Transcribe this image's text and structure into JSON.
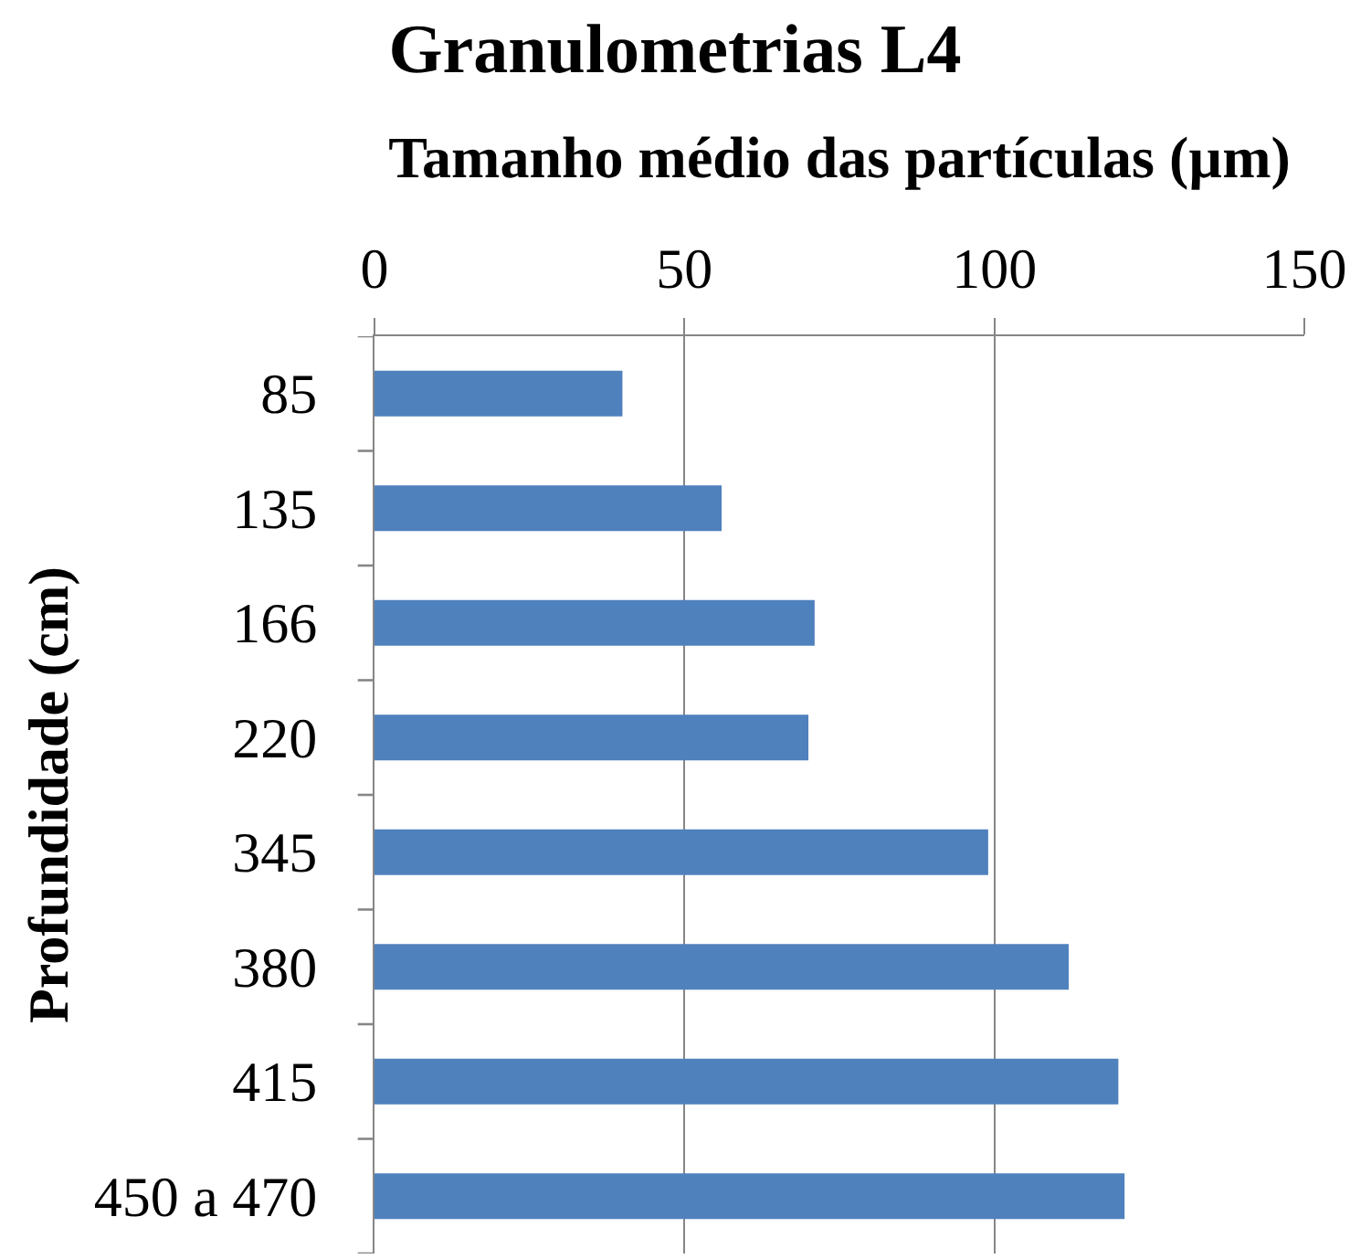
{
  "chart_data": {
    "type": "bar",
    "orientation": "horizontal",
    "title": "Granulometrias L4",
    "xlabel": "Tamanho médio das partículas (µm)",
    "ylabel": "Profundidade (cm)",
    "categories": [
      "85",
      "135",
      "166",
      "220",
      "345",
      "380",
      "415",
      "450 a 470"
    ],
    "values": [
      40,
      56,
      71,
      70,
      99,
      112,
      120,
      121
    ],
    "color": "#4f81bd",
    "xlim": [
      0,
      150
    ],
    "xticks": [
      0,
      50,
      100,
      150
    ],
    "grid": "x"
  }
}
